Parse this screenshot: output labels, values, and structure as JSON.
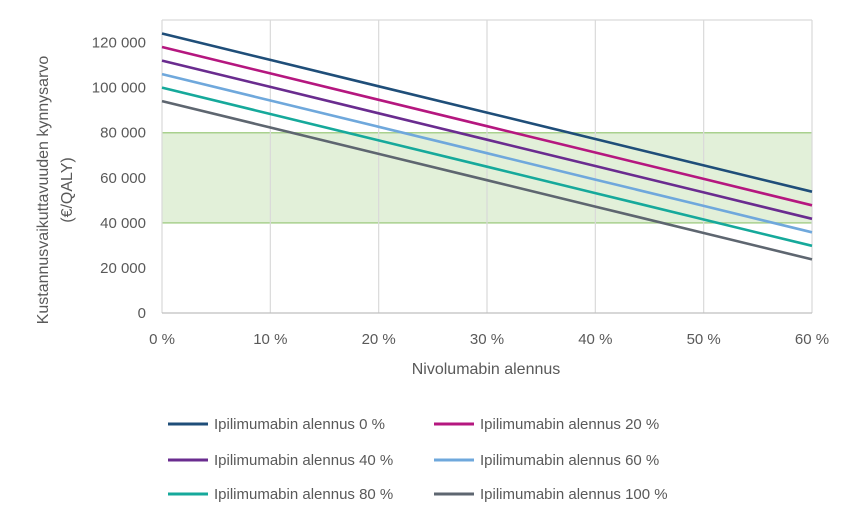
{
  "chart_data": {
    "type": "line",
    "title": "",
    "xlabel": "Nivolumabin alennus",
    "ylabel_lines": [
      "Kustannusvaikuttavuuden kynnysarvo",
      "(€/QALY)"
    ],
    "x": [
      0,
      10,
      20,
      30,
      40,
      50,
      60
    ],
    "x_tick_labels": [
      "0 %",
      "10 %",
      "20 %",
      "30 %",
      "40 %",
      "50 %",
      "60 %"
    ],
    "xlim": [
      0,
      60
    ],
    "ylim": [
      0,
      130000
    ],
    "y_ticks": [
      0,
      20000,
      40000,
      60000,
      80000,
      100000,
      120000
    ],
    "y_tick_labels": [
      "0",
      "20 000",
      "40 000",
      "60 000",
      "80 000",
      "100 000",
      "120 000"
    ],
    "grid": true,
    "legend_position": "bottom",
    "shaded_band": {
      "from": 40000,
      "to": 80000,
      "color": "#E2F0D9",
      "border": "#A9D18E"
    },
    "series": [
      {
        "name": "Ipilimumabin alennus 0 %",
        "color": "#1F4E79",
        "values": [
          124000,
          112300,
          100600,
          88900,
          77200,
          65500,
          53800
        ]
      },
      {
        "name": "Ipilimumabin alennus 20 %",
        "color": "#B5177F",
        "values": [
          118000,
          106300,
          94600,
          82900,
          71200,
          59500,
          47800
        ]
      },
      {
        "name": "Ipilimumabin alennus 40 %",
        "color": "#6A2C8F",
        "values": [
          112000,
          100300,
          88600,
          76900,
          65200,
          53500,
          41800
        ]
      },
      {
        "name": "Ipilimumabin alennus 60 %",
        "color": "#6FA8DC",
        "values": [
          106000,
          94300,
          82600,
          70900,
          59200,
          47500,
          35800
        ]
      },
      {
        "name": "Ipilimumabin alennus 80 %",
        "color": "#16A99B",
        "values": [
          100000,
          88300,
          76600,
          64900,
          53200,
          41500,
          29800
        ]
      },
      {
        "name": "Ipilimumabin alennus 100 %",
        "color": "#5E6670",
        "values": [
          94000,
          82300,
          70600,
          58900,
          47200,
          35500,
          23800
        ]
      }
    ]
  }
}
